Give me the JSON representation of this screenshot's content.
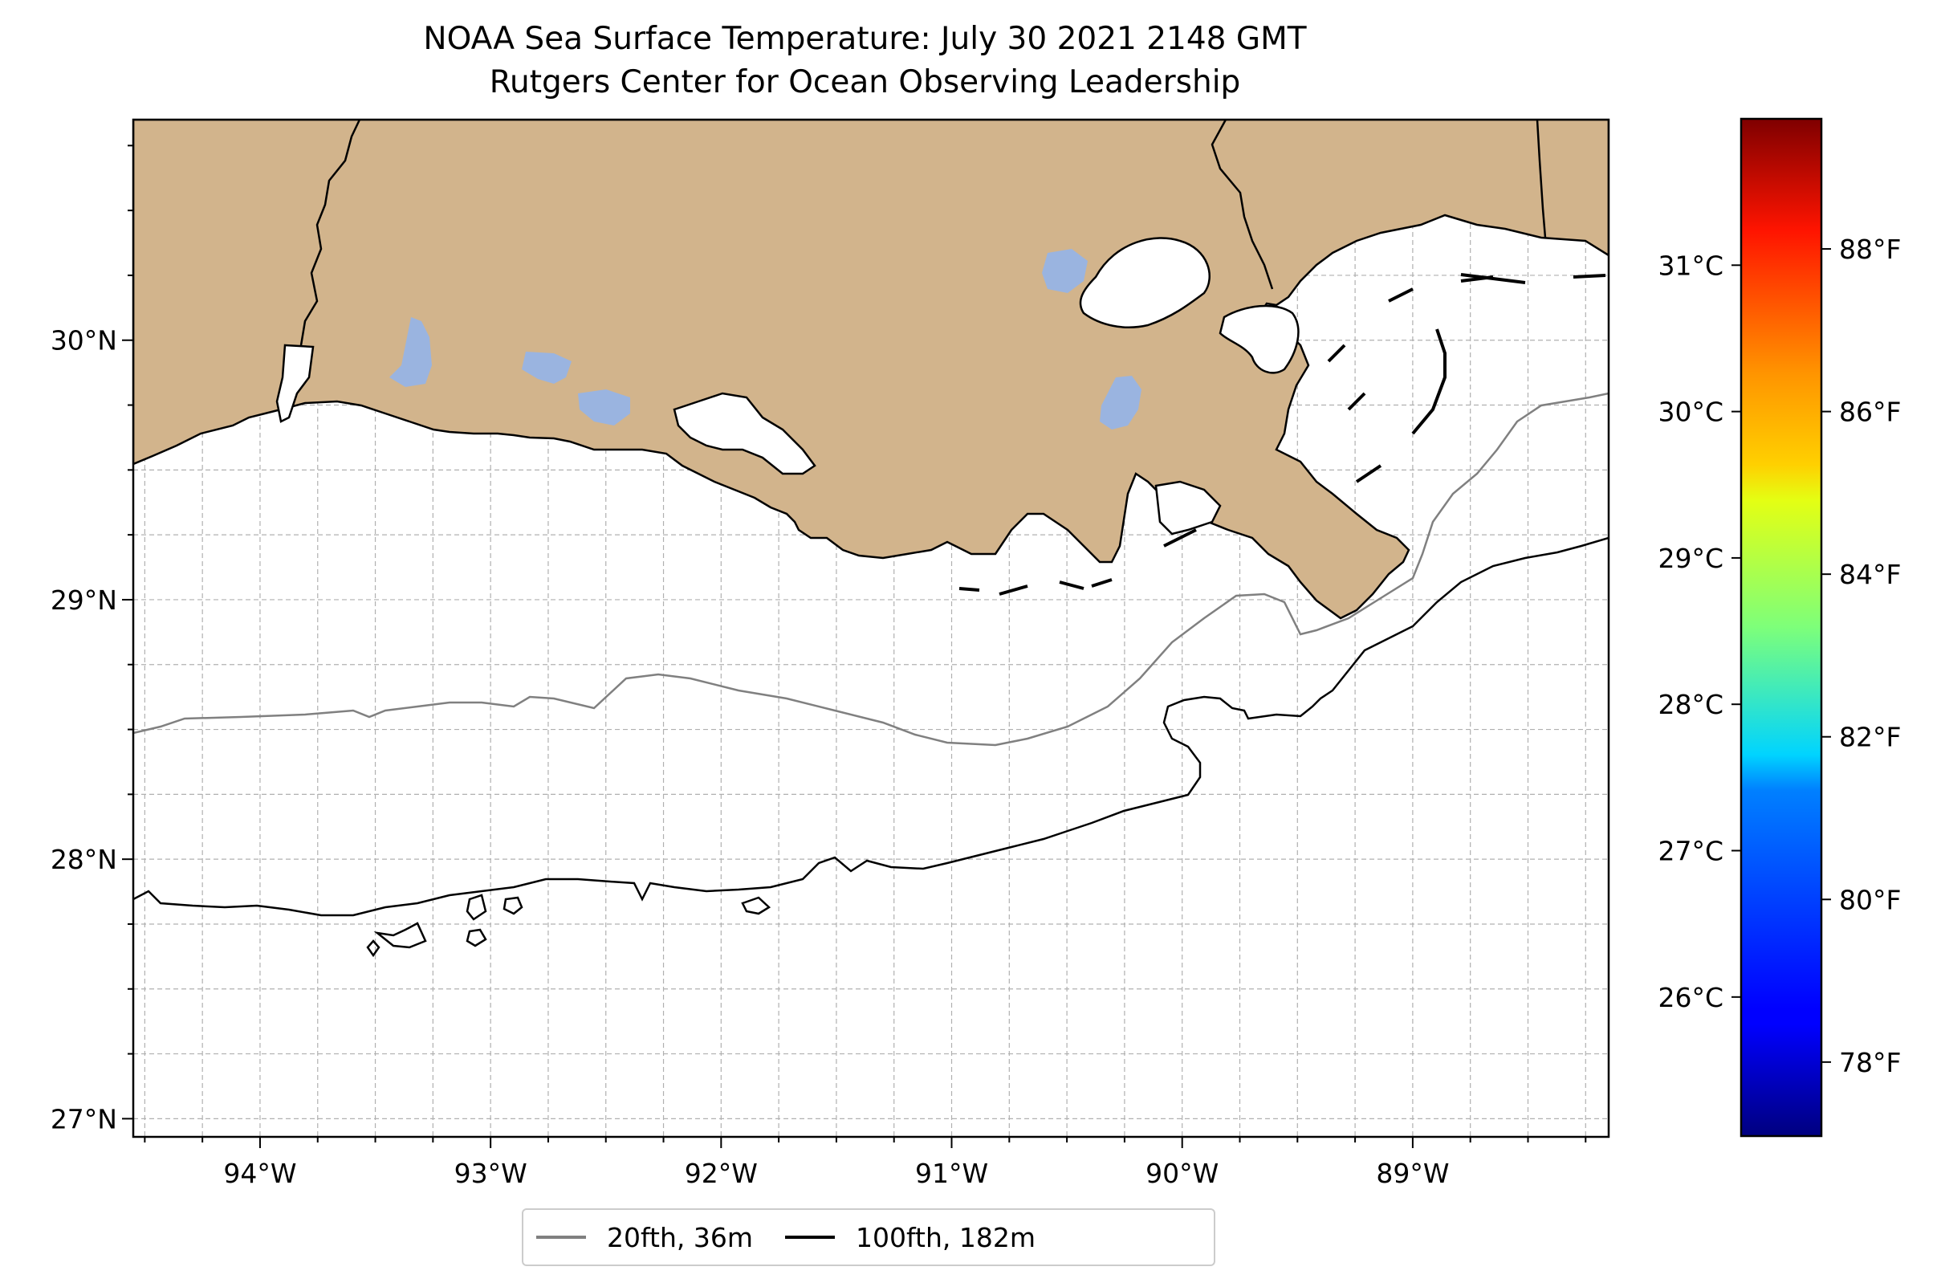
{
  "title": {
    "line1": "NOAA Sea Surface Temperature: July 30 2021 2148 GMT",
    "line2": "Rutgers Center for Ocean Observing Leadership"
  },
  "map": {
    "lon_range": [
      -94.55,
      -88.15
    ],
    "lat_range": [
      26.93,
      30.85
    ],
    "x_ticks": [
      {
        "value": -94,
        "label": "94°W"
      },
      {
        "value": -93,
        "label": "93°W"
      },
      {
        "value": -92,
        "label": "92°W"
      },
      {
        "value": -91,
        "label": "91°W"
      },
      {
        "value": -90,
        "label": "90°W"
      },
      {
        "value": -89,
        "label": "89°W"
      }
    ],
    "y_ticks": [
      {
        "value": 27,
        "label": "27°N"
      },
      {
        "value": 28,
        "label": "28°N"
      },
      {
        "value": 29,
        "label": "29°N"
      },
      {
        "value": 30,
        "label": "30°N"
      }
    ],
    "grid": true,
    "colors": {
      "land": "#D2B48C",
      "water_bodies": "#9AB4E0",
      "isobath_20fth": "#808080",
      "isobath_100fth": "#000000",
      "grid": "#b0b0b0"
    }
  },
  "legend": {
    "items": [
      {
        "label": "20fth, 36m",
        "color": "#808080"
      },
      {
        "label": "100fth, 182m",
        "color": "#000000"
      }
    ]
  },
  "colorbar": {
    "colormap": "jet",
    "celsius_range": [
      25.05,
      32.0
    ],
    "celsius_ticks": [
      {
        "value": 26,
        "label": "26°C"
      },
      {
        "value": 27,
        "label": "27°C"
      },
      {
        "value": 28,
        "label": "28°C"
      },
      {
        "value": 29,
        "label": "29°C"
      },
      {
        "value": 30,
        "label": "30°C"
      },
      {
        "value": 31,
        "label": "31°C"
      }
    ],
    "fahrenheit_ticks": [
      {
        "value": 78,
        "label": "78°F"
      },
      {
        "value": 80,
        "label": "80°F"
      },
      {
        "value": 82,
        "label": "82°F"
      },
      {
        "value": 84,
        "label": "84°F"
      },
      {
        "value": 86,
        "label": "86°F"
      },
      {
        "value": 88,
        "label": "88°F"
      }
    ]
  }
}
